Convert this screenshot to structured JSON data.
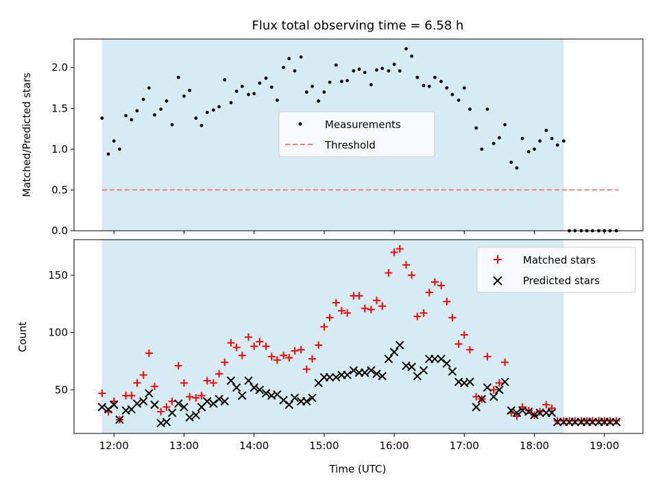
{
  "chart_data": [
    {
      "type": "scatter",
      "title": "Flux total observing time = 6.58 h",
      "xlabel": "",
      "ylabel": "Matched/Predicted stars",
      "xlim": [
        11.43,
        19.55
      ],
      "ylim": [
        0,
        2.35
      ],
      "yticks": [
        0.0,
        0.5,
        1.0,
        1.5,
        2.0
      ],
      "ytick_labels": [
        "0.0",
        "0.5",
        "1.0",
        "1.5",
        "2.0"
      ],
      "shaded_span": [
        11.83,
        18.42
      ],
      "legend": [
        "Measurements",
        "Threshold"
      ],
      "threshold": {
        "value": 0.5,
        "x_range": [
          11.83,
          19.2
        ],
        "color": "#f08080"
      },
      "series": [
        {
          "name": "Measurements",
          "color": "#000000",
          "x": [
            11.83,
            11.92,
            12.0,
            12.08,
            12.17,
            12.25,
            12.33,
            12.42,
            12.5,
            12.58,
            12.67,
            12.75,
            12.83,
            12.92,
            13.0,
            13.08,
            13.17,
            13.25,
            13.33,
            13.42,
            13.5,
            13.58,
            13.67,
            13.75,
            13.83,
            13.92,
            14.0,
            14.08,
            14.17,
            14.25,
            14.33,
            14.42,
            14.5,
            14.58,
            14.67,
            14.75,
            14.83,
            14.92,
            15.0,
            15.08,
            15.17,
            15.25,
            15.33,
            15.42,
            15.5,
            15.58,
            15.67,
            15.75,
            15.83,
            15.92,
            16.0,
            16.08,
            16.17,
            16.25,
            16.33,
            16.42,
            16.5,
            16.58,
            16.67,
            16.75,
            16.83,
            16.92,
            17.0,
            17.08,
            17.17,
            17.25,
            17.33,
            17.42,
            17.5,
            17.58,
            17.67,
            17.75,
            17.83,
            17.92,
            18.0,
            18.08,
            18.17,
            18.25,
            18.33,
            18.42,
            18.5,
            18.58,
            18.67,
            18.75,
            18.83,
            18.92,
            19.0,
            19.08,
            19.17
          ],
          "values": [
            1.38,
            0.94,
            1.1,
            1.0,
            1.41,
            1.36,
            1.47,
            1.61,
            1.75,
            1.42,
            1.49,
            1.59,
            1.3,
            1.88,
            1.65,
            1.72,
            1.38,
            1.29,
            1.45,
            1.48,
            1.52,
            1.85,
            1.57,
            1.71,
            1.77,
            1.67,
            1.68,
            1.81,
            1.87,
            1.76,
            1.6,
            2.0,
            2.11,
            1.96,
            2.13,
            1.7,
            1.77,
            1.59,
            1.7,
            1.82,
            2.03,
            1.83,
            1.84,
            1.96,
            1.98,
            1.94,
            1.79,
            1.97,
            1.99,
            1.96,
            2.04,
            1.96,
            2.23,
            2.14,
            1.88,
            1.78,
            1.77,
            1.88,
            1.83,
            1.75,
            1.67,
            1.6,
            1.75,
            1.49,
            1.26,
            1.0,
            1.49,
            1.07,
            1.14,
            1.3,
            0.84,
            0.77,
            1.13,
            0.97,
            1.0,
            1.1,
            1.23,
            1.13,
            1.05,
            1.1,
            0.0,
            0.0,
            0.0,
            0.0,
            0.0,
            0.0,
            0.0,
            0.0,
            0.0
          ]
        }
      ]
    },
    {
      "type": "scatter",
      "title": "",
      "xlabel": "Time (UTC)",
      "ylabel": "Count",
      "xlim": [
        11.43,
        19.55
      ],
      "ylim": [
        12,
        181
      ],
      "yticks": [
        50,
        100,
        150
      ],
      "ytick_labels": [
        "50",
        "100",
        "150"
      ],
      "xticks": [
        12,
        13,
        14,
        15,
        16,
        17,
        18,
        19
      ],
      "xtick_labels": [
        "12:00",
        "13:00",
        "14:00",
        "15:00",
        "16:00",
        "17:00",
        "18:00",
        "19:00"
      ],
      "shaded_span": [
        11.83,
        18.42
      ],
      "legend": [
        "Matched stars",
        "Predicted stars"
      ],
      "x": [
        11.83,
        11.92,
        12.0,
        12.08,
        12.17,
        12.25,
        12.33,
        12.42,
        12.5,
        12.58,
        12.67,
        12.75,
        12.83,
        12.92,
        13.0,
        13.08,
        13.17,
        13.25,
        13.33,
        13.42,
        13.5,
        13.58,
        13.67,
        13.75,
        13.83,
        13.92,
        14.0,
        14.08,
        14.17,
        14.25,
        14.33,
        14.42,
        14.5,
        14.58,
        14.67,
        14.75,
        14.83,
        14.92,
        15.0,
        15.08,
        15.17,
        15.25,
        15.33,
        15.42,
        15.5,
        15.58,
        15.67,
        15.75,
        15.83,
        15.92,
        16.0,
        16.08,
        16.17,
        16.25,
        16.33,
        16.42,
        16.5,
        16.58,
        16.67,
        16.75,
        16.83,
        16.92,
        17.0,
        17.08,
        17.17,
        17.25,
        17.33,
        17.42,
        17.5,
        17.58,
        17.67,
        17.75,
        17.83,
        17.92,
        18.0,
        18.08,
        18.17,
        18.25,
        18.33,
        18.42,
        18.5,
        18.58,
        18.67,
        18.75,
        18.83,
        18.92,
        19.0,
        19.08,
        19.17
      ],
      "series": [
        {
          "name": "Matched stars",
          "color": "#ff0000",
          "marker": "plus",
          "values": [
            47,
            31,
            40,
            24,
            45,
            45,
            56,
            63,
            82,
            53,
            31,
            35,
            40,
            71,
            56,
            44,
            43,
            45,
            58,
            56,
            64,
            74,
            91,
            87,
            80,
            96,
            88,
            92,
            88,
            79,
            76,
            80,
            78,
            84,
            85,
            68,
            77,
            89,
            105,
            113,
            126,
            119,
            117,
            132,
            132,
            121,
            120,
            128,
            123,
            152,
            170,
            173,
            159,
            150,
            114,
            117,
            135,
            144,
            141,
            127,
            113,
            90,
            98,
            85,
            44,
            42,
            79,
            50,
            56,
            74,
            30,
            27,
            35,
            32,
            28,
            31,
            37,
            34,
            23,
            23,
            23,
            23,
            23,
            23,
            23,
            23,
            23,
            23,
            23
          ]
        },
        {
          "name": "Predicted stars",
          "color": "#000000",
          "marker": "x",
          "values": [
            35,
            33,
            37,
            24,
            32,
            33,
            38,
            40,
            47,
            37,
            21,
            22,
            30,
            38,
            35,
            26,
            28,
            35,
            40,
            38,
            42,
            40,
            58,
            52,
            45,
            58,
            52,
            50,
            47,
            45,
            46,
            41,
            37,
            43,
            40,
            40,
            43,
            56,
            61,
            61,
            61,
            63,
            63,
            67,
            65,
            65,
            67,
            64,
            62,
            77,
            83,
            89,
            71,
            70,
            62,
            67,
            77,
            77,
            77,
            73,
            66,
            57,
            56,
            57,
            35,
            42,
            52,
            44,
            50,
            57,
            32,
            30,
            32,
            31,
            28,
            30,
            30,
            30,
            22,
            22,
            22,
            22,
            22,
            22,
            22,
            22,
            22,
            22,
            22
          ]
        }
      ]
    }
  ]
}
